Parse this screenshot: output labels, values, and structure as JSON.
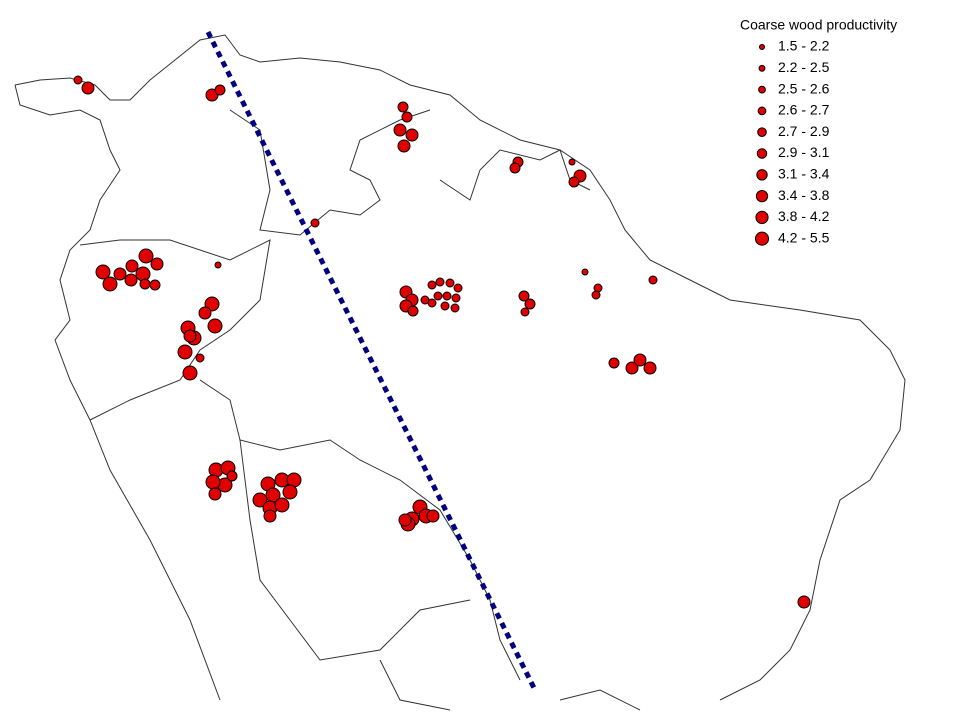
{
  "map": {
    "legend": {
      "title": "Coarse wood productivity",
      "items": [
        "1.5 - 2.2",
        "2.2 - 2.5",
        "2.5 - 2.6",
        "2.6 - 2.7",
        "2.7 - 2.9",
        "2.9 - 3.1",
        "3.1 - 3.4",
        "3.4 - 3.8",
        "3.8 - 4.2",
        "4.2 - 5.5"
      ]
    }
  }
}
